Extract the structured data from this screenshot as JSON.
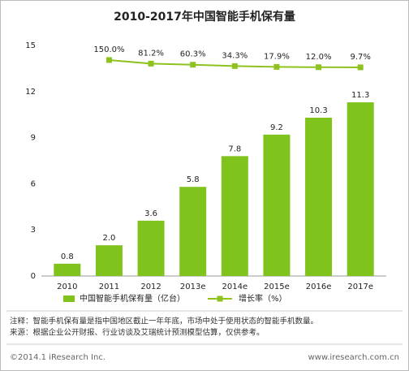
{
  "chart_data": {
    "type": "bar-line",
    "title": "2010-2017年中国智能手机保有量",
    "categories": [
      "2010",
      "2011",
      "2012",
      "2013e",
      "2014e",
      "2015e",
      "2016e",
      "2017e"
    ],
    "series": [
      {
        "name": "中国智能手机保有量（亿台）",
        "type": "bar",
        "color": "#80c31c",
        "values": [
          0.8,
          2.0,
          3.6,
          5.8,
          7.8,
          9.2,
          10.3,
          11.3
        ],
        "value_labels": [
          "0.8",
          "2.0",
          "3.6",
          "5.8",
          "7.8",
          "9.2",
          "10.3",
          "11.3"
        ]
      },
      {
        "name": "增长率（%）",
        "type": "line",
        "axis": "y2",
        "color": "#8dc21f",
        "values": [
          null,
          150.0,
          81.2,
          60.3,
          34.3,
          17.9,
          12.0,
          9.7
        ],
        "value_labels": [
          null,
          "150.0%",
          "81.2%",
          "60.3%",
          "34.3%",
          "17.9%",
          "12.0%",
          "9.7%"
        ]
      }
    ],
    "ylim": [
      0,
      15
    ],
    "yticks": [
      0,
      3,
      6,
      9,
      12,
      15
    ],
    "y2lim": [
      -4000,
      430
    ],
    "legend": "bottom",
    "grid": false
  },
  "notes": [
    "注释：智能手机保有量是指中国地区截止一年年底，市场中处于使用状态的智能手机数量。",
    "来源：根据企业公开财报、行业访谈及艾瑞统计预测模型估算，仅供参考。"
  ],
  "footer": {
    "copyright": "©2014.1 iResearch Inc.",
    "website": "www.iresearch.com.cn"
  }
}
